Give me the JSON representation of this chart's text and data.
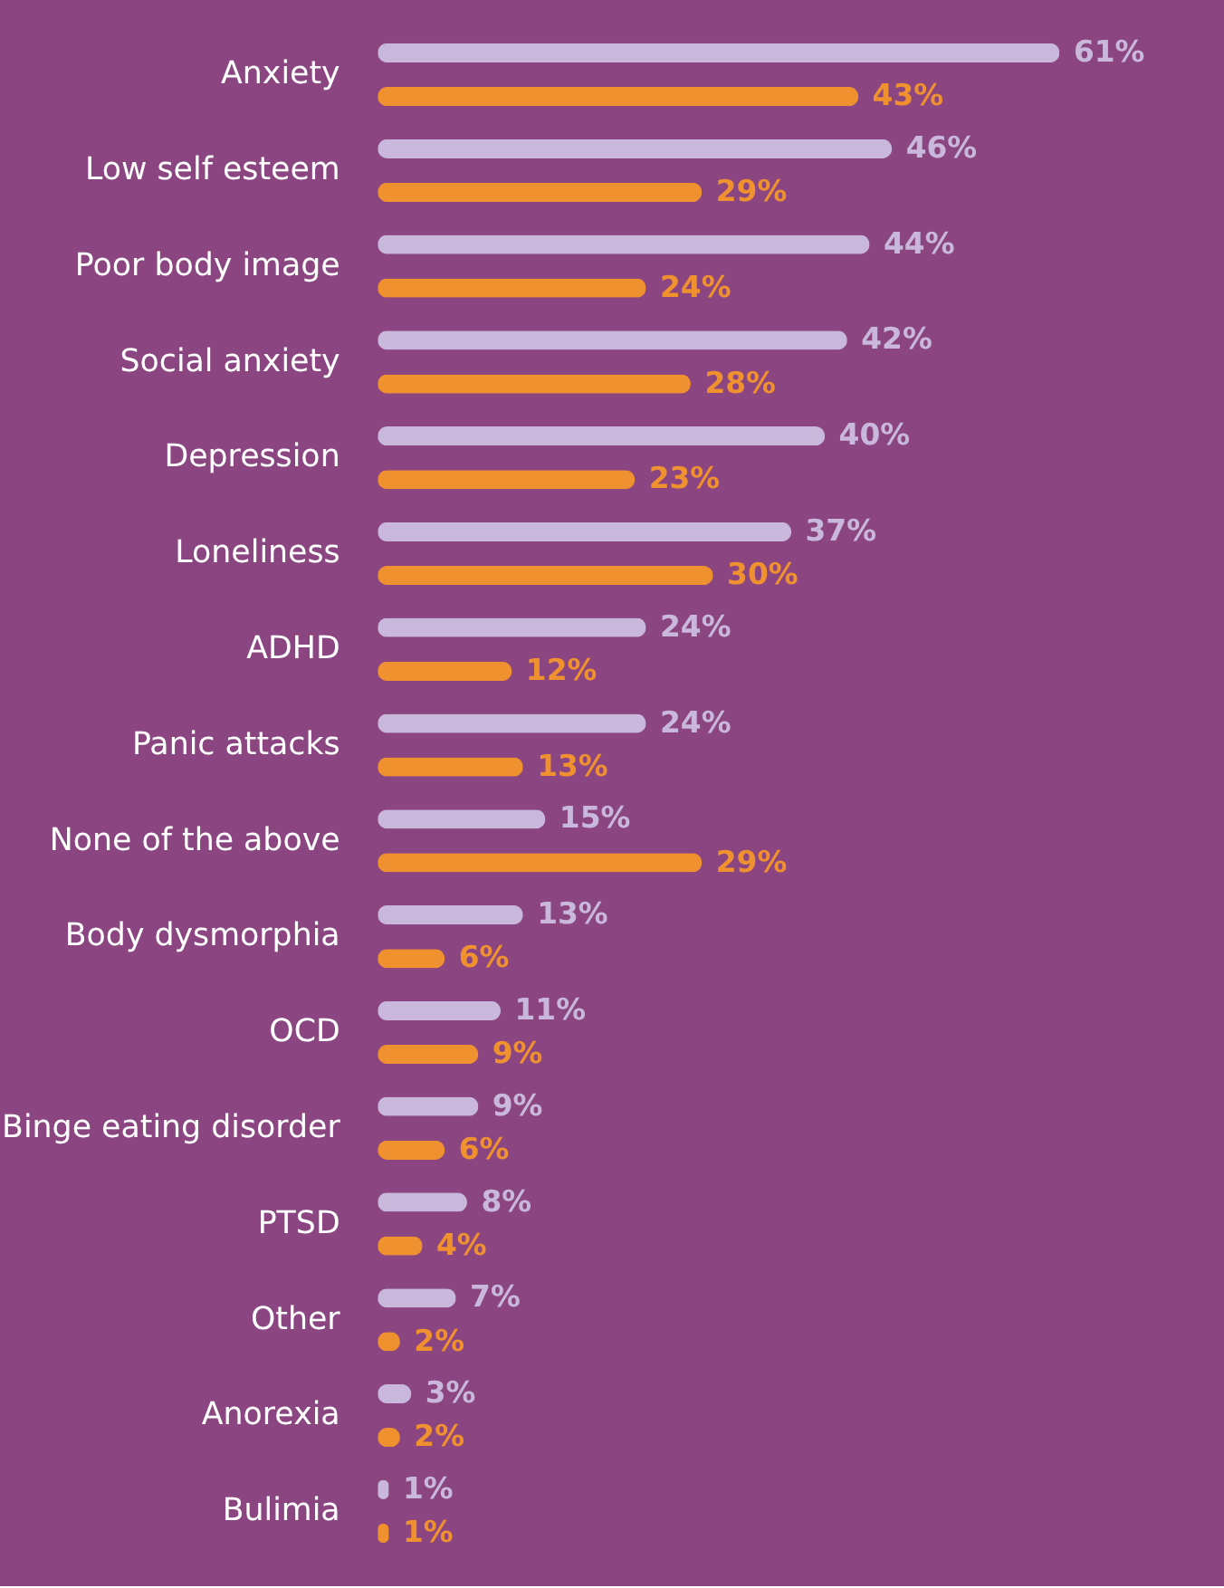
{
  "chart_data": {
    "type": "bar",
    "orientation": "horizontal",
    "categories": [
      "Anxiety",
      "Low self esteem",
      "Poor body image",
      "Social anxiety",
      "Depression",
      "Loneliness",
      "ADHD",
      "Panic attacks",
      "None of the above",
      "Body dysmorphia",
      "OCD",
      "Binge eating disorder",
      "PTSD",
      "Other",
      "Anorexia",
      "Bulimia"
    ],
    "series": [
      {
        "color": "#c9b8dc",
        "values": [
          61,
          46,
          44,
          42,
          40,
          37,
          24,
          24,
          15,
          13,
          11,
          9,
          8,
          7,
          3,
          1
        ],
        "value_labels": [
          "61%",
          "46%",
          "44%",
          "42%",
          "40%",
          "37%",
          "24%",
          "24%",
          "15%",
          "13%",
          "11%",
          "9%",
          "8%",
          "7%",
          "3%",
          "1%"
        ]
      },
      {
        "color": "#f0912f",
        "values": [
          43,
          29,
          24,
          28,
          23,
          30,
          12,
          13,
          29,
          6,
          9,
          6,
          4,
          2,
          2,
          1
        ],
        "value_labels": [
          "43%",
          "29%",
          "24%",
          "28%",
          "23%",
          "30%",
          "12%",
          "13%",
          "29%",
          "6%",
          "9%",
          "6%",
          "4%",
          "2%",
          "2%",
          "1%"
        ]
      }
    ],
    "tick_labels": "y",
    "grid": false
  }
}
